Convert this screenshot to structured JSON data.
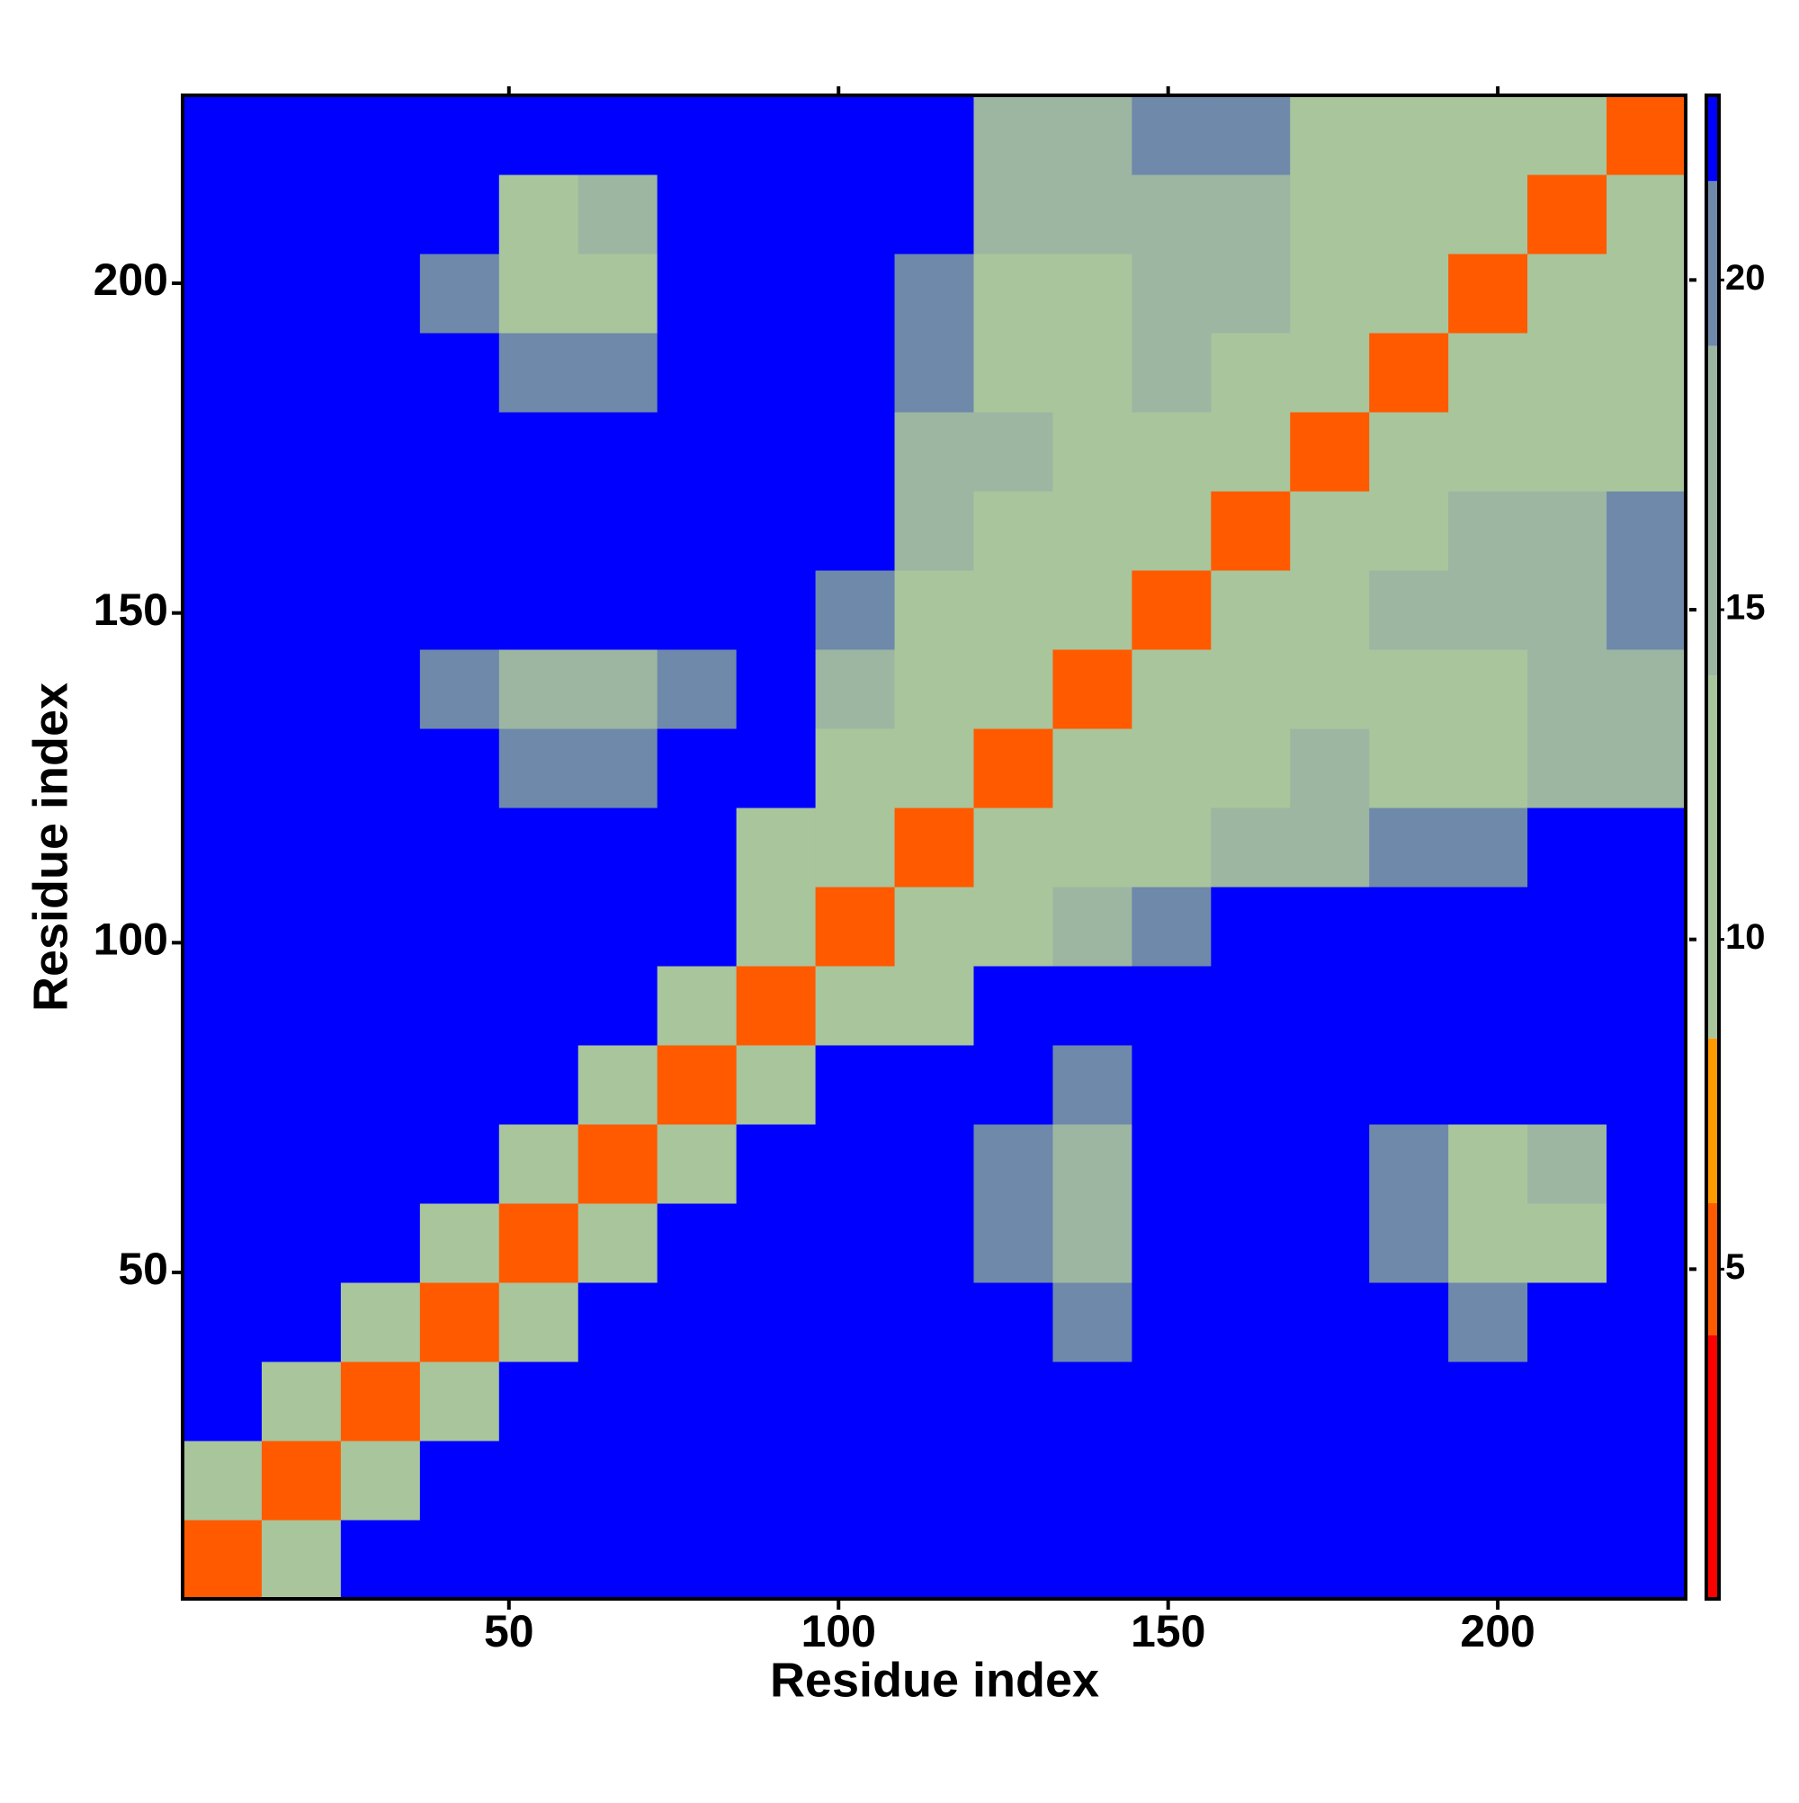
{
  "chart_data": {
    "type": "heatmap",
    "x_label": "Residue index",
    "y_label": "Residue index",
    "x": [
      6.5,
      18.5,
      30.5,
      42.5,
      54.5,
      66.5,
      78.5,
      90.5,
      102.5,
      114.5,
      126.5,
      138.5,
      150.5,
      162.5,
      174.5,
      186.5,
      198.5,
      210.5,
      222.5
    ],
    "y": [
      6.5,
      18.5,
      30.5,
      42.5,
      54.5,
      66.5,
      78.5,
      90.5,
      102.5,
      114.5,
      126.5,
      138.5,
      150.5,
      162.5,
      174.5,
      186.5,
      198.5,
      210.5,
      222.5
    ],
    "z": [
      [
        5,
        9,
        22,
        22,
        22,
        22,
        22,
        22,
        22,
        22,
        22,
        22,
        22,
        22,
        22,
        22,
        22,
        22,
        22
      ],
      [
        9,
        5,
        9,
        22,
        22,
        22,
        22,
        22,
        22,
        22,
        22,
        22,
        22,
        22,
        22,
        22,
        22,
        22,
        22
      ],
      [
        22,
        9,
        5,
        9,
        22,
        22,
        22,
        22,
        22,
        22,
        22,
        22,
        22,
        22,
        22,
        22,
        22,
        22,
        22
      ],
      [
        22,
        22,
        9,
        5,
        9,
        22,
        22,
        22,
        22,
        22,
        22,
        20,
        22,
        22,
        22,
        22,
        20,
        22,
        22
      ],
      [
        22,
        22,
        22,
        9,
        5,
        9,
        22,
        22,
        22,
        22,
        20,
        18,
        22,
        22,
        22,
        20,
        12,
        13,
        22
      ],
      [
        22,
        22,
        22,
        22,
        9,
        5,
        9,
        22,
        22,
        22,
        19,
        18,
        22,
        22,
        22,
        20,
        13,
        15,
        22
      ],
      [
        22,
        22,
        22,
        22,
        22,
        9,
        5,
        9,
        22,
        22,
        22,
        20,
        22,
        22,
        22,
        22,
        22,
        22,
        22
      ],
      [
        22,
        22,
        22,
        22,
        22,
        22,
        9,
        5,
        9,
        13,
        22,
        22,
        22,
        22,
        22,
        22,
        22,
        22,
        22
      ],
      [
        22,
        22,
        22,
        22,
        22,
        22,
        22,
        9,
        5,
        10,
        12,
        14,
        20,
        22,
        22,
        22,
        22,
        22,
        22
      ],
      [
        22,
        22,
        22,
        22,
        22,
        22,
        22,
        13,
        10,
        5,
        10,
        11,
        13,
        14,
        18,
        20,
        19,
        22,
        22
      ],
      [
        22,
        22,
        22,
        22,
        20,
        19,
        22,
        22,
        12,
        10,
        5,
        10,
        11,
        13,
        14,
        12,
        12,
        16,
        17
      ],
      [
        22,
        22,
        22,
        20,
        18,
        18,
        20,
        22,
        14,
        11,
        10,
        5,
        10,
        12,
        13,
        12,
        13,
        15,
        16
      ],
      [
        22,
        22,
        22,
        22,
        22,
        22,
        22,
        22,
        20,
        13,
        11,
        10,
        5,
        10,
        12,
        14,
        15,
        18,
        19
      ],
      [
        22,
        22,
        22,
        22,
        22,
        22,
        22,
        22,
        22,
        14,
        13,
        12,
        10,
        5,
        10,
        12,
        14,
        18,
        20
      ],
      [
        22,
        22,
        22,
        22,
        22,
        22,
        22,
        22,
        22,
        18,
        14,
        13,
        12,
        10,
        5,
        10,
        11,
        12,
        13
      ],
      [
        22,
        22,
        22,
        22,
        20,
        20,
        22,
        22,
        22,
        20,
        12,
        12,
        14,
        12,
        10,
        5,
        10,
        11,
        12
      ],
      [
        22,
        22,
        22,
        20,
        12,
        13,
        22,
        22,
        22,
        19,
        12,
        13,
        15,
        14,
        11,
        10,
        5,
        10,
        11
      ],
      [
        22,
        22,
        22,
        22,
        13,
        15,
        22,
        22,
        22,
        22,
        16,
        15,
        18,
        18,
        12,
        11,
        10,
        5,
        10
      ],
      [
        22,
        22,
        22,
        22,
        22,
        22,
        22,
        22,
        22,
        22,
        17,
        16,
        19,
        20,
        13,
        12,
        11,
        10,
        5
      ]
    ],
    "xlim": [
      0.5,
      228.5
    ],
    "ylim": [
      0.5,
      228.5
    ],
    "xticks": [
      50,
      100,
      150,
      200
    ],
    "yticks": [
      50,
      100,
      150,
      200
    ],
    "zlim": [
      0,
      22.8
    ],
    "zticks": [
      5,
      10,
      15,
      20
    ],
    "colorscale": [
      {
        "value": 0,
        "color": "#ff0000"
      },
      {
        "value": 4,
        "color": "#ff5a00"
      },
      {
        "value": 6,
        "color": "#ff9900"
      },
      {
        "value": 8.5,
        "color": "#a9c59c"
      },
      {
        "value": 14,
        "color": "#9cb6a2"
      },
      {
        "value": 19,
        "color": "#6f89ab"
      },
      {
        "value": 21.5,
        "color": "#0000ff"
      }
    ]
  }
}
